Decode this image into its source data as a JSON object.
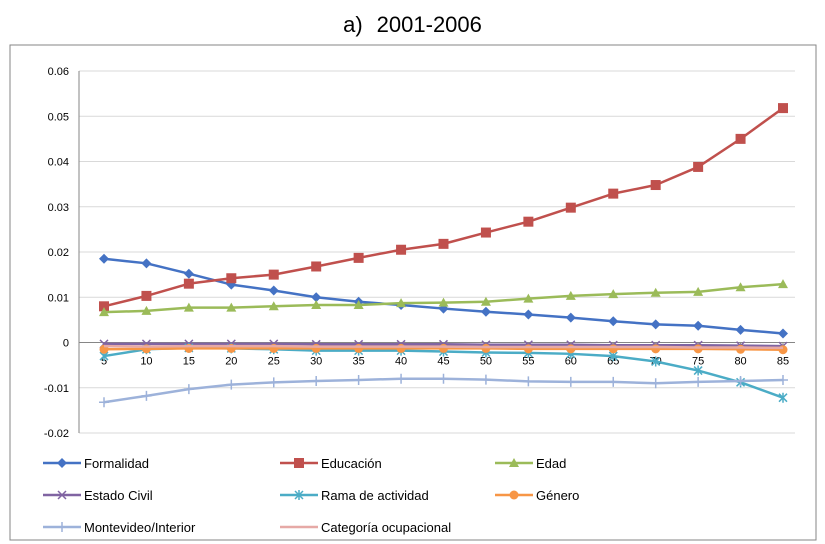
{
  "heading": {
    "label": "a)",
    "period": "2001-2006"
  },
  "chart_data": {
    "type": "line",
    "title": "",
    "xlabel": "",
    "ylabel": "",
    "x": [
      5,
      10,
      15,
      20,
      25,
      30,
      35,
      40,
      45,
      50,
      55,
      60,
      65,
      70,
      75,
      80,
      85
    ],
    "ylim": [
      -0.02,
      0.06
    ],
    "yticks": [
      -0.02,
      -0.01,
      0,
      0.01,
      0.02,
      0.03,
      0.04,
      0.05,
      0.06
    ],
    "ytick_labels": [
      "-0.02",
      "-0.01",
      "0",
      "0.01",
      "0.02",
      "0.03",
      "0.04",
      "0.05",
      "0.06"
    ],
    "grid": true,
    "legend_position": "bottom",
    "series": [
      {
        "name": "Formalidad",
        "color": "#4472C4",
        "marker": "diamond",
        "values": [
          0.0185,
          0.0175,
          0.0152,
          0.0128,
          0.0115,
          0.01,
          0.009,
          0.0083,
          0.0075,
          0.0068,
          0.0062,
          0.0055,
          0.0047,
          0.004,
          0.0037,
          0.0028,
          0.002
        ]
      },
      {
        "name": "Educación",
        "color": "#C0504D",
        "marker": "square",
        "values": [
          0.008,
          0.0103,
          0.013,
          0.0142,
          0.015,
          0.0168,
          0.0187,
          0.0205,
          0.0218,
          0.0243,
          0.0267,
          0.0298,
          0.0329,
          0.0348,
          0.0388,
          0.045,
          0.0518
        ]
      },
      {
        "name": "Edad",
        "color": "#9BBB59",
        "marker": "triangle",
        "values": [
          0.0067,
          0.007,
          0.0077,
          0.0077,
          0.008,
          0.0083,
          0.0083,
          0.0087,
          0.0088,
          0.009,
          0.0097,
          0.0103,
          0.0107,
          0.011,
          0.0112,
          0.0122,
          0.0129
        ]
      },
      {
        "name": "Estado Civil",
        "color": "#8064A2",
        "marker": "x",
        "values": [
          -0.0003,
          -0.0003,
          -0.0003,
          -0.0003,
          -0.0003,
          -0.0004,
          -0.0004,
          -0.0004,
          -0.0004,
          -0.0005,
          -0.0005,
          -0.0005,
          -0.0006,
          -0.0006,
          -0.0006,
          -0.0007,
          -0.0008
        ]
      },
      {
        "name": "Rama de actividad",
        "color": "#4BACC6",
        "marker": "star",
        "values": [
          -0.003,
          -0.0015,
          -0.0012,
          -0.0013,
          -0.0015,
          -0.0018,
          -0.0018,
          -0.0018,
          -0.002,
          -0.0022,
          -0.0023,
          -0.0025,
          -0.003,
          -0.0042,
          -0.0062,
          -0.0088,
          -0.0122
        ]
      },
      {
        "name": "Género",
        "color": "#F79646",
        "marker": "circle",
        "values": [
          -0.0015,
          -0.0014,
          -0.0013,
          -0.0013,
          -0.0013,
          -0.0013,
          -0.0013,
          -0.0013,
          -0.0013,
          -0.0013,
          -0.0014,
          -0.0014,
          -0.0014,
          -0.0014,
          -0.0014,
          -0.0015,
          -0.0016
        ]
      },
      {
        "name": "Montevideo/Interior",
        "color": "#9DB2DA",
        "marker": "plus",
        "values": [
          -0.0132,
          -0.0118,
          -0.0103,
          -0.0093,
          -0.0088,
          -0.0085,
          -0.0083,
          -0.008,
          -0.008,
          -0.0082,
          -0.0086,
          -0.0087,
          -0.0087,
          -0.009,
          -0.0087,
          -0.0085,
          -0.0083
        ]
      },
      {
        "name": "Categoría ocupacional",
        "color": "#E6A9A6",
        "marker": "none",
        "values": [
          -0.0008,
          -0.0009,
          -0.0008,
          -0.0008,
          -0.0008,
          -0.0009,
          -0.0009,
          -0.0009,
          -0.0009,
          -0.001,
          -0.001,
          -0.001,
          -0.001,
          -0.001,
          -0.0011,
          -0.0011,
          -0.0012
        ]
      }
    ]
  }
}
